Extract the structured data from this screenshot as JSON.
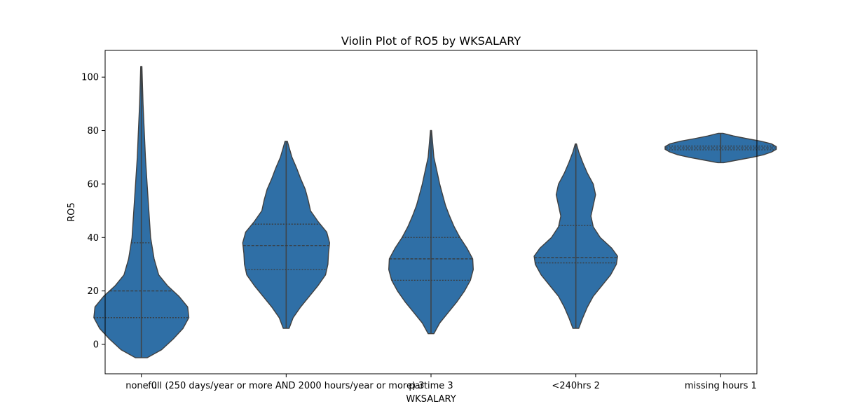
{
  "chart_data": {
    "type": "violin",
    "title": "Violin Plot of RO5 by WKSALARY",
    "xlabel": "WKSALARY",
    "ylabel": "RO5",
    "ylim": [
      -11,
      110
    ],
    "yticks": [
      0,
      20,
      40,
      60,
      80,
      100
    ],
    "categories": [
      "none 0",
      "full (250 days/year or more AND 2000 hours/year or more) 3",
      "partime 3",
      "<240hrs 2",
      "missing hours 1"
    ],
    "violin_color": "#2f6fa6",
    "edge_color": "#404040",
    "violins": [
      {
        "category": "none 0",
        "quartiles": [
          10,
          20,
          38
        ],
        "range": [
          -5,
          104
        ],
        "profile": [
          [
            -5,
            0.1
          ],
          [
            -2,
            0.35
          ],
          [
            2,
            0.55
          ],
          [
            6,
            0.72
          ],
          [
            10,
            0.82
          ],
          [
            14,
            0.8
          ],
          [
            18,
            0.65
          ],
          [
            22,
            0.45
          ],
          [
            26,
            0.3
          ],
          [
            32,
            0.22
          ],
          [
            40,
            0.16
          ],
          [
            50,
            0.13
          ],
          [
            60,
            0.1
          ],
          [
            70,
            0.07
          ],
          [
            80,
            0.05
          ],
          [
            90,
            0.03
          ],
          [
            104,
            0.01
          ]
        ]
      },
      {
        "category": "full (250 days/year or more AND 2000 hours/year or more) 3",
        "quartiles": [
          28,
          37,
          45
        ],
        "range": [
          6,
          76
        ],
        "profile": [
          [
            6,
            0.05
          ],
          [
            10,
            0.12
          ],
          [
            14,
            0.25
          ],
          [
            18,
            0.4
          ],
          [
            22,
            0.55
          ],
          [
            26,
            0.68
          ],
          [
            30,
            0.72
          ],
          [
            34,
            0.73
          ],
          [
            38,
            0.75
          ],
          [
            42,
            0.7
          ],
          [
            46,
            0.55
          ],
          [
            50,
            0.42
          ],
          [
            54,
            0.38
          ],
          [
            58,
            0.33
          ],
          [
            62,
            0.25
          ],
          [
            66,
            0.18
          ],
          [
            70,
            0.1
          ],
          [
            76,
            0.02
          ]
        ]
      },
      {
        "category": "partime 3",
        "quartiles": [
          24,
          32,
          40
        ],
        "range": [
          4,
          80
        ],
        "profile": [
          [
            4,
            0.05
          ],
          [
            8,
            0.15
          ],
          [
            12,
            0.3
          ],
          [
            16,
            0.45
          ],
          [
            20,
            0.58
          ],
          [
            24,
            0.68
          ],
          [
            28,
            0.73
          ],
          [
            32,
            0.72
          ],
          [
            36,
            0.62
          ],
          [
            40,
            0.5
          ],
          [
            44,
            0.4
          ],
          [
            48,
            0.32
          ],
          [
            52,
            0.25
          ],
          [
            56,
            0.2
          ],
          [
            60,
            0.15
          ],
          [
            65,
            0.1
          ],
          [
            70,
            0.05
          ],
          [
            80,
            0.01
          ]
        ]
      },
      {
        "category": "<240hrs 2",
        "quartiles": [
          30.5,
          32.5,
          44.5
        ],
        "range": [
          6,
          75
        ],
        "profile": [
          [
            6,
            0.05
          ],
          [
            10,
            0.12
          ],
          [
            14,
            0.2
          ],
          [
            18,
            0.3
          ],
          [
            22,
            0.45
          ],
          [
            26,
            0.6
          ],
          [
            30,
            0.7
          ],
          [
            33,
            0.72
          ],
          [
            36,
            0.62
          ],
          [
            40,
            0.42
          ],
          [
            44,
            0.3
          ],
          [
            48,
            0.26
          ],
          [
            52,
            0.3
          ],
          [
            56,
            0.34
          ],
          [
            60,
            0.3
          ],
          [
            64,
            0.2
          ],
          [
            68,
            0.12
          ],
          [
            72,
            0.05
          ],
          [
            75,
            0.01
          ]
        ]
      },
      {
        "category": "missing hours 1",
        "quartiles": [
          72.8,
          73.5,
          74.2
        ],
        "range": [
          68,
          79
        ],
        "profile": [
          [
            68,
            0.05
          ],
          [
            69,
            0.3
          ],
          [
            70,
            0.55
          ],
          [
            71,
            0.75
          ],
          [
            72,
            0.88
          ],
          [
            73,
            0.96
          ],
          [
            74,
            0.96
          ],
          [
            75,
            0.88
          ],
          [
            76,
            0.7
          ],
          [
            77,
            0.45
          ],
          [
            78,
            0.22
          ],
          [
            79,
            0.04
          ]
        ]
      }
    ]
  }
}
